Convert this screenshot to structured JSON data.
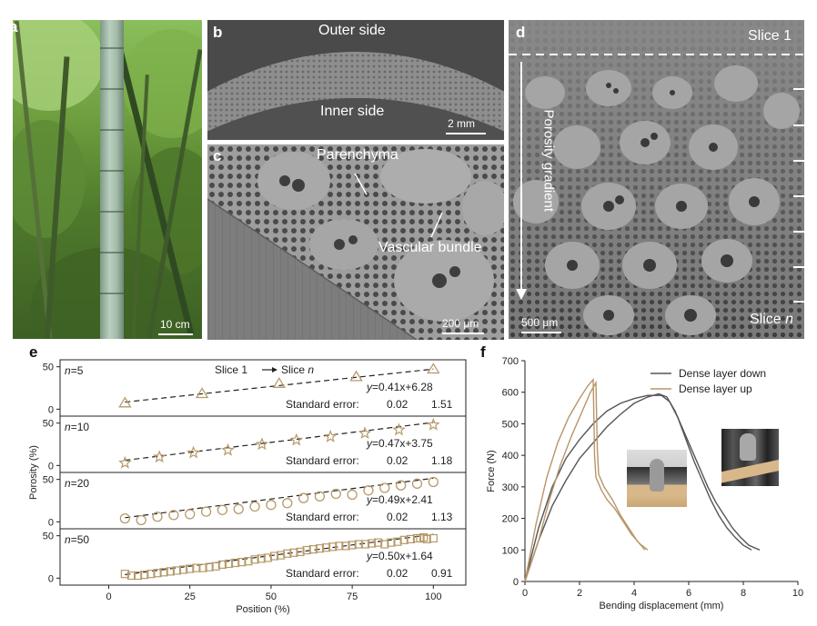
{
  "panels": {
    "a": {
      "label": "a",
      "scale": "10 cm"
    },
    "b": {
      "label": "b",
      "outer": "Outer side",
      "inner": "Inner side",
      "scale": "2 mm"
    },
    "c": {
      "label": "c",
      "parenchyma": "Parenchyma",
      "vascular": "Vascular bundle",
      "scale": "200 μm"
    },
    "d": {
      "label": "d",
      "slice1": "Slice 1",
      "gradient": "Porosity gradient",
      "scale": "500 μm",
      "slicen": "Slice",
      "slicen_n": "n"
    },
    "e": {
      "label": "e"
    },
    "f": {
      "label": "f"
    }
  },
  "chart_data": [
    {
      "type": "scatter",
      "panel": "e",
      "xlabel": "Position (%)",
      "ylabel": "Porosity (%)",
      "xlim": [
        -15,
        110
      ],
      "xticks": [
        "0",
        "25",
        "50",
        "75",
        "100"
      ],
      "annotation": {
        "from": "Slice 1",
        "to": "Slice",
        "to_italic": "n"
      },
      "colors": {
        "marker": "#b79a6a",
        "fit": "#222222"
      },
      "rows": [
        {
          "n": "=5",
          "marker": "triangle",
          "ylim": [
            -5,
            55
          ],
          "yticks": [
            "0",
            "50"
          ],
          "x": [
            5,
            28.75,
            52.5,
            76.25,
            100
          ],
          "y": [
            7,
            18,
            30,
            38,
            47
          ],
          "fit": {
            "slope": 0.41,
            "intercept": 6.28
          },
          "equation": "=0.41x+6.28",
          "se_label": "Standard error:",
          "se1": "0.02",
          "se2": "1.51"
        },
        {
          "n": "=10",
          "marker": "star",
          "ylim": [
            -5,
            55
          ],
          "yticks": [
            "0",
            "50"
          ],
          "x": [
            5,
            15.6,
            26.1,
            36.7,
            47.2,
            57.8,
            68.3,
            78.9,
            89.4,
            100
          ],
          "y": [
            3,
            10,
            15,
            18,
            25,
            30,
            34,
            38,
            42,
            48
          ],
          "fit": {
            "slope": 0.47,
            "intercept": 3.75
          },
          "equation": "=0.47x+3.75",
          "se_label": "Standard error:",
          "se1": "0.02",
          "se2": "1.18"
        },
        {
          "n": "=20",
          "marker": "circle",
          "ylim": [
            -5,
            55
          ],
          "yticks": [
            "0",
            "50"
          ],
          "x": [
            5,
            10,
            15,
            20,
            25,
            30,
            35,
            40,
            45,
            50,
            55,
            60,
            65,
            70,
            75,
            80,
            85,
            90,
            95,
            100
          ],
          "y": [
            4,
            2,
            6,
            8,
            9,
            12,
            14,
            15,
            18,
            20,
            22,
            28,
            30,
            33,
            32,
            37,
            40,
            43,
            45,
            47
          ],
          "fit": {
            "slope": 0.49,
            "intercept": 2.41
          },
          "equation": "=0.49x+2.41",
          "se_label": "Standard error:",
          "se1": "0.02",
          "se2": "1.13"
        },
        {
          "n": "=50",
          "marker": "square",
          "ylim": [
            -5,
            55
          ],
          "yticks": [
            "0",
            "50"
          ],
          "x": [
            5,
            7,
            9,
            11,
            13,
            15,
            17,
            19,
            21,
            23,
            25,
            27,
            29,
            31,
            33,
            35,
            37,
            39,
            41,
            43,
            45,
            47,
            49,
            51,
            53,
            55,
            57,
            59,
            61,
            63,
            65,
            67,
            69,
            71,
            73,
            75,
            77,
            79,
            81,
            83,
            85,
            87,
            89,
            91,
            93,
            95,
            96,
            97,
            98,
            100
          ],
          "y": [
            5,
            3,
            3,
            4,
            5,
            6,
            7,
            8,
            9,
            10,
            11,
            12,
            12,
            13,
            14,
            16,
            17,
            18,
            19,
            20,
            22,
            23,
            24,
            26,
            27,
            29,
            30,
            31,
            33,
            34,
            35,
            36,
            37,
            38,
            38,
            39,
            40,
            40,
            41,
            42,
            40,
            42,
            43,
            45,
            46,
            47,
            47,
            48,
            46,
            47
          ],
          "fit": {
            "slope": 0.5,
            "intercept": 1.64
          },
          "equation": "=0.50x+1.64",
          "se_label": "Standard error:",
          "se1": "0.02",
          "se2": "0.91"
        }
      ]
    },
    {
      "type": "line",
      "panel": "f",
      "xlabel": "Bending displacement (mm)",
      "ylabel": "Force (N)",
      "xlim": [
        0,
        10
      ],
      "ylim": [
        0,
        700
      ],
      "xticks": [
        0,
        2,
        4,
        6,
        8,
        10
      ],
      "yticks": [
        0,
        100,
        200,
        300,
        400,
        500,
        600,
        700
      ],
      "legend_position": "top-right",
      "series": [
        {
          "name": "Dense layer down",
          "color": "#555555",
          "curves": [
            {
              "x": [
                0,
                0.5,
                1,
                1.5,
                2,
                2.5,
                3,
                3.5,
                4,
                4.5,
                4.9,
                5.2,
                5.5,
                5.8,
                6.1,
                6.4,
                6.7,
                7.0,
                7.3,
                7.6,
                7.9,
                8.2,
                8.6
              ],
              "y": [
                0,
                130,
                240,
                320,
                390,
                440,
                490,
                530,
                565,
                585,
                595,
                585,
                540,
                480,
                420,
                360,
                300,
                250,
                210,
                170,
                140,
                115,
                100
              ]
            },
            {
              "x": [
                0,
                0.5,
                1,
                1.5,
                2,
                2.5,
                3,
                3.5,
                4,
                4.5,
                5,
                5.3,
                5.6,
                5.9,
                6.2,
                6.5,
                6.8,
                7.1,
                7.4,
                7.7,
                8.0,
                8.3
              ],
              "y": [
                0,
                170,
                300,
                390,
                450,
                500,
                540,
                565,
                580,
                590,
                590,
                570,
                520,
                450,
                380,
                320,
                260,
                210,
                170,
                140,
                115,
                100
              ]
            }
          ]
        },
        {
          "name": "Dense layer up",
          "color": "#b9956a",
          "curves": [
            {
              "x": [
                0,
                0.4,
                0.8,
                1.2,
                1.6,
                2.0,
                2.3,
                2.5,
                2.55,
                2.6,
                2.8,
                3.0,
                3.3,
                3.6,
                3.9,
                4.2,
                4.5
              ],
              "y": [
                0,
                180,
                330,
                440,
                520,
                580,
                620,
                640,
                400,
                330,
                290,
                260,
                230,
                190,
                150,
                120,
                100
              ]
            },
            {
              "x": [
                0,
                0.5,
                0.9,
                1.3,
                1.7,
                2.1,
                2.4,
                2.6,
                2.65,
                2.7,
                2.9,
                3.2,
                3.5,
                3.8,
                4.1,
                4.4
              ],
              "y": [
                0,
                130,
                260,
                370,
                460,
                540,
                600,
                630,
                420,
                340,
                300,
                260,
                210,
                170,
                130,
                100
              ]
            }
          ]
        }
      ]
    }
  ]
}
